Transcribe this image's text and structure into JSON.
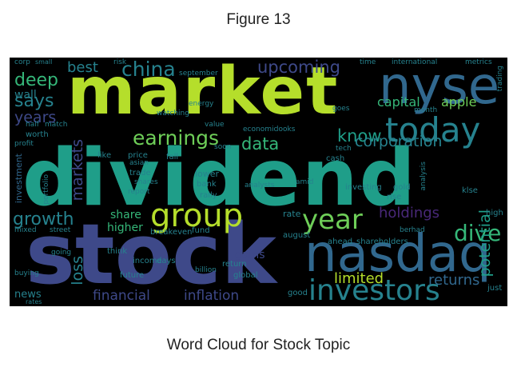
{
  "figure_label": "Figure 13",
  "caption": "Word Cloud for Stock Topic",
  "colors": {
    "background": "#000000",
    "palette": [
      "#fde725",
      "#b5de2b",
      "#6ece58",
      "#35b779",
      "#1f9e89",
      "#26828e",
      "#31688e",
      "#3e4989",
      "#482878",
      "#440154"
    ]
  },
  "words": [
    {
      "text": "dividend",
      "color": "#1f9e89"
    },
    {
      "text": "stock",
      "color": "#3e4989"
    },
    {
      "text": "market",
      "color": "#b5de2b"
    },
    {
      "text": "nasdaq",
      "color": "#31688e"
    },
    {
      "text": "nyse",
      "color": "#31688e"
    },
    {
      "text": "investors",
      "color": "#26828e"
    },
    {
      "text": "today",
      "color": "#26828e"
    },
    {
      "text": "group",
      "color": "#b5de2b"
    },
    {
      "text": "year",
      "color": "#6ece58"
    },
    {
      "text": "china",
      "color": "#26828e"
    },
    {
      "text": "earnings",
      "color": "#6ece58"
    },
    {
      "text": "growth",
      "color": "#26828e"
    },
    {
      "text": "dive",
      "color": "#35b779"
    },
    {
      "text": "deep",
      "color": "#35b779"
    },
    {
      "text": "best",
      "color": "#26828e"
    },
    {
      "text": "says",
      "color": "#26828e"
    },
    {
      "text": "upcoming",
      "color": "#3e4989"
    },
    {
      "text": "holdings",
      "color": "#482878"
    },
    {
      "text": "data",
      "color": "#35b779"
    },
    {
      "text": "know",
      "color": "#1f9e89"
    },
    {
      "text": "capital",
      "color": "#35b779"
    },
    {
      "text": "apple",
      "color": "#6ece58"
    },
    {
      "text": "potential",
      "color": "#1f9e89"
    },
    {
      "text": "years",
      "color": "#3e4989"
    },
    {
      "text": "corporation",
      "color": "#26828e"
    },
    {
      "text": "markets",
      "color": "#3e4989"
    },
    {
      "text": "loss",
      "color": "#26828e"
    },
    {
      "text": "returns",
      "color": "#31688e"
    },
    {
      "text": "limited",
      "color": "#b5de2b"
    },
    {
      "text": "financial",
      "color": "#3e4989"
    },
    {
      "text": "inflation",
      "color": "#3e4989"
    },
    {
      "text": "share",
      "color": "#35b779"
    },
    {
      "text": "higher",
      "color": "#35b779"
    },
    {
      "text": "wall",
      "color": "#26828e"
    },
    {
      "text": "gains",
      "color": "#3e4989"
    },
    {
      "text": "investment",
      "color": "#31688e"
    },
    {
      "text": "news",
      "color": "#26828e"
    },
    {
      "text": "rate",
      "color": "#26828e"
    },
    {
      "text": "like",
      "color": "#26828e"
    },
    {
      "text": "lower",
      "color": "#26828e"
    },
    {
      "text": "fall",
      "color": "#26828e"
    },
    {
      "text": "price",
      "color": "#26828e"
    },
    {
      "text": "bank",
      "color": "#26828e"
    },
    {
      "text": "rally",
      "color": "#26828e"
    },
    {
      "text": "trade",
      "color": "#26828e"
    },
    {
      "text": "fund",
      "color": "#26828e"
    },
    {
      "text": "cash",
      "color": "#26828e"
    },
    {
      "text": "gold",
      "color": "#26828e"
    },
    {
      "text": "investing",
      "color": "#26828e"
    },
    {
      "text": "time",
      "color": "#26828e"
    },
    {
      "text": "international",
      "color": "#26828e"
    },
    {
      "text": "metrics",
      "color": "#26828e"
    },
    {
      "text": "august",
      "color": "#26828e"
    },
    {
      "text": "ahead",
      "color": "#26828e"
    },
    {
      "text": "shareholders",
      "color": "#26828e"
    },
    {
      "text": "income",
      "color": "#26828e"
    },
    {
      "text": "think",
      "color": "#26828e"
    },
    {
      "text": "future",
      "color": "#26828e"
    },
    {
      "text": "days",
      "color": "#26828e"
    },
    {
      "text": "global",
      "color": "#26828e"
    },
    {
      "text": "billion",
      "color": "#26828e"
    },
    {
      "text": "return",
      "color": "#26828e"
    },
    {
      "text": "good",
      "color": "#26828e"
    },
    {
      "text": "just",
      "color": "#26828e"
    },
    {
      "text": "high",
      "color": "#26828e"
    },
    {
      "text": "rise",
      "color": "#26828e"
    },
    {
      "text": "worth",
      "color": "#26828e"
    },
    {
      "text": "half",
      "color": "#26828e"
    },
    {
      "text": "match",
      "color": "#26828e"
    },
    {
      "text": "september",
      "color": "#26828e"
    },
    {
      "text": "energy",
      "color": "#26828e"
    },
    {
      "text": "watching",
      "color": "#26828e"
    },
    {
      "text": "value",
      "color": "#26828e"
    },
    {
      "text": "soon",
      "color": "#26828e"
    },
    {
      "text": "economic",
      "color": "#26828e"
    },
    {
      "text": "looks",
      "color": "#26828e"
    },
    {
      "text": "tech",
      "color": "#26828e"
    },
    {
      "text": "goes",
      "color": "#26828e"
    },
    {
      "text": "amid",
      "color": "#26828e"
    },
    {
      "text": "analysts",
      "color": "#26828e"
    },
    {
      "text": "breakeven",
      "color": "#26828e"
    },
    {
      "text": "asian",
      "color": "#26828e"
    },
    {
      "text": "report",
      "color": "#26828e"
    },
    {
      "text": "corp",
      "color": "#26828e"
    },
    {
      "text": "small",
      "color": "#26828e"
    },
    {
      "text": "risk",
      "color": "#26828e"
    },
    {
      "text": "month",
      "color": "#26828e"
    },
    {
      "text": "klse",
      "color": "#26828e"
    },
    {
      "text": "berhad",
      "color": "#26828e"
    },
    {
      "text": "going",
      "color": "#26828e"
    },
    {
      "text": "mixed",
      "color": "#26828e"
    },
    {
      "text": "street",
      "color": "#26828e"
    },
    {
      "text": "buying",
      "color": "#26828e"
    },
    {
      "text": "rates",
      "color": "#26828e"
    },
    {
      "text": "profit",
      "color": "#26828e"
    },
    {
      "text": "portfolio",
      "color": "#26828e"
    },
    {
      "text": "shares",
      "color": "#26828e"
    },
    {
      "text": "analysis",
      "color": "#26828e"
    },
    {
      "text": "trading",
      "color": "#26828e"
    }
  ]
}
